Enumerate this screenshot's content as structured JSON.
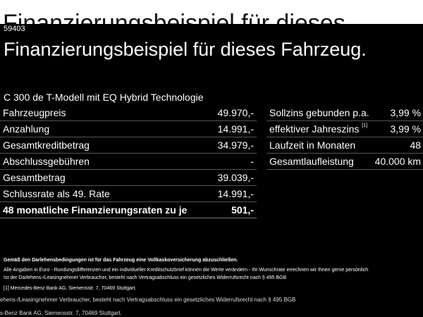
{
  "ghost": {
    "top": "Finanzierungsbeispiel für dieses",
    "bottom_line1": "ehens-/Leasingnehmer Verbraucher, besteht nach Vertragsabschluss ein gesetzliches Widerrufsrecht nach § 495 BGB",
    "bottom_line2": "s-Benz Bank AG, Siemensstr. 7, 70469 Stuttgart."
  },
  "ad_id": "59403",
  "headline": "Finanzierungsbeispiel für dieses Fahrzeug.",
  "model": "C 300 de T-Modell mit EQ Hybrid Technologie",
  "left_table": [
    {
      "label": "Fahrzeugpreis",
      "value": "49.970,-"
    },
    {
      "label": "Anzahlung",
      "value": "14.991,-"
    },
    {
      "label": "Gesamtkreditbetrag",
      "value": "34.979,-"
    },
    {
      "label": "Abschlussgebühren",
      "value": "-"
    },
    {
      "label": "Gesamtbetrag",
      "value": "39.039,-"
    },
    {
      "label": "Schlussrate als 49. Rate",
      "value": "14.991,-"
    },
    {
      "label": "48 monatliche Finanzierungsraten zu je",
      "value": "501,-"
    }
  ],
  "right_table": [
    {
      "label": "Sollzins gebunden p.a.",
      "sup": "",
      "value": "3,99 %"
    },
    {
      "label": "effektiver Jahreszins",
      "sup": "[1]",
      "value": "3,99 %"
    },
    {
      "label": "Laufzeit in Monaten",
      "sup": "",
      "value": "48"
    },
    {
      "label": "Gesamtlaufleistung",
      "sup": "",
      "value": "40.000 km"
    }
  ],
  "footnotes": {
    "bold": "Gemäß den Darlehensbedingungen ist für das Fahrzeug eine Vollkaskoversicherung abzuschließen.",
    "line1": "Alle Angaben in Euro - Rundungsdifferenzen und ein individueller Kreditschutzbrief können die Werte verändern - Ihr Wunschrate errechnen wir Ihnen gerne persönlich",
    "line2": "Ist der Darlehens-/Leasingnehmer Verbraucher, besteht nach Vertragsabschluss ein gesetzliches Widerrufsrecht nach § 495 BGB",
    "ref_marker": "[1]",
    "ref_text": "Mercedes-Benz Bank AG, Siemensstr. 7, 70469 Stuttgart."
  }
}
